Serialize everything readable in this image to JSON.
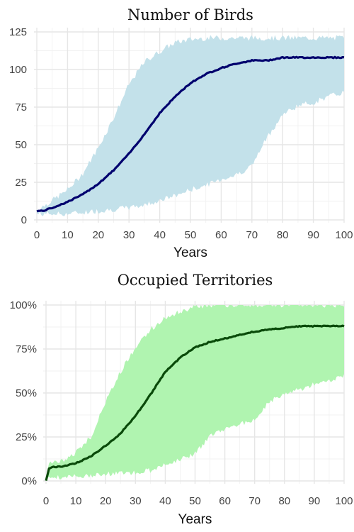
{
  "chart_data": [
    {
      "type": "line",
      "title": "Number of Birds",
      "xlabel": "Years",
      "ylabel": "",
      "xlim": [
        0,
        100
      ],
      "ylim": [
        0,
        125
      ],
      "x_ticks": [
        "0",
        "10",
        "20",
        "30",
        "40",
        "50",
        "60",
        "70",
        "80",
        "90",
        "100"
      ],
      "y_ticks": [
        "0",
        "25",
        "50",
        "75",
        "100",
        "125"
      ],
      "colors": {
        "line": "#00006e",
        "band": "#c3e1ea"
      },
      "series": [
        {
          "x": [
            0,
            2,
            5,
            10,
            15,
            20,
            25,
            30,
            35,
            40,
            45,
            50,
            55,
            60,
            65,
            70,
            75,
            80,
            85,
            90,
            95,
            100
          ],
          "mean": [
            6,
            6,
            8,
            12,
            17,
            24,
            33,
            44,
            57,
            71,
            82,
            91,
            97,
            101,
            104,
            106,
            106,
            108,
            108,
            108,
            108,
            108
          ],
          "lower": [
            4,
            4,
            4,
            4,
            5,
            6,
            7,
            8,
            10,
            13,
            16,
            20,
            23,
            27,
            30,
            36,
            55,
            70,
            76,
            78,
            82,
            85
          ],
          "upper": [
            7,
            9,
            13,
            20,
            31,
            48,
            68,
            90,
            105,
            112,
            118,
            120,
            121,
            121,
            121,
            121,
            121,
            121,
            121,
            121,
            121,
            121
          ]
        }
      ]
    },
    {
      "type": "line",
      "title": "Occupied Territories",
      "xlabel": "Years",
      "ylabel": "",
      "xlim": [
        0,
        100
      ],
      "ylim": [
        0,
        100
      ],
      "x_ticks": [
        "0",
        "10",
        "20",
        "30",
        "40",
        "50",
        "60",
        "70",
        "80",
        "90",
        "100"
      ],
      "y_ticks": [
        "0%",
        "25%",
        "50%",
        "75%",
        "100%"
      ],
      "colors": {
        "line": "#0a4a0a",
        "band": "#b0f4b0"
      },
      "series": [
        {
          "x": [
            0,
            1,
            2,
            5,
            10,
            15,
            20,
            25,
            30,
            35,
            40,
            45,
            50,
            55,
            60,
            65,
            70,
            75,
            80,
            85,
            90,
            95,
            100
          ],
          "mean": [
            0,
            7,
            8,
            8,
            10,
            14,
            20,
            27,
            37,
            49,
            62,
            70,
            76,
            79,
            81,
            83,
            85,
            86,
            87,
            88,
            88,
            88,
            88
          ],
          "lower": [
            0,
            2,
            2,
            2,
            3,
            3,
            4,
            4,
            5,
            6,
            9,
            12,
            16,
            25,
            30,
            32,
            35,
            45,
            50,
            52,
            55,
            57,
            60
          ],
          "upper": [
            0,
            10,
            10,
            11,
            16,
            25,
            45,
            62,
            76,
            86,
            93,
            96,
            99,
            100,
            100,
            100,
            100,
            100,
            100,
            100,
            100,
            100,
            100
          ]
        }
      ]
    }
  ]
}
